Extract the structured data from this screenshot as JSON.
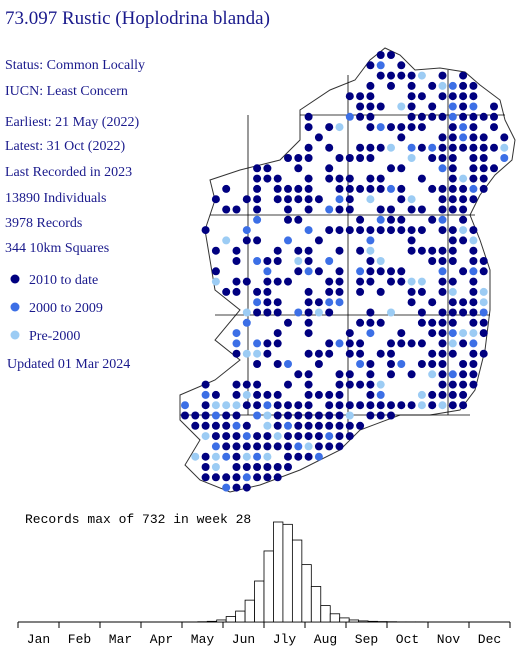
{
  "title": "73.097 Rustic (Hoplodrina blanda)",
  "info": [
    "Status: Common Locally",
    "IUCN: Least Concern",
    "Earliest: 21 May (2022)",
    "Latest: 31 Oct (2022)",
    "Last Recorded in 2023",
    "13890 Individuals",
    "3978 Records",
    "344 10km Squares"
  ],
  "legend": [
    {
      "label": "2010 to date",
      "color": "#000080"
    },
    {
      "label": "2000 to 2009",
      "color": "#3c6fe6"
    },
    {
      "label": "Pre-2000",
      "color": "#9cccf4"
    }
  ],
  "updated": "Updated 01 Mar 2024",
  "chart_data": {
    "type": "bar",
    "title": "Records max of 732 in week 28",
    "month_labels": [
      "Jan",
      "Feb",
      "Mar",
      "Apr",
      "May",
      "Jun",
      "Jly",
      "Aug",
      "Sep",
      "Oct",
      "Nov",
      "Dec"
    ],
    "categories": [
      null,
      null,
      null,
      null,
      null,
      null,
      null,
      null,
      null,
      null,
      null,
      null,
      null,
      null,
      null,
      null,
      null,
      null,
      null,
      null,
      null,
      null,
      null,
      null,
      null,
      null,
      null,
      null,
      null,
      null,
      null,
      null,
      null,
      null,
      null,
      null,
      null,
      null,
      null,
      null,
      null,
      null,
      null,
      null,
      null,
      null,
      null,
      null,
      null,
      null,
      null,
      null
    ],
    "values": [
      0,
      0,
      0,
      0,
      0,
      0,
      0,
      0,
      0,
      0,
      0,
      0,
      0,
      0,
      0,
      0,
      0,
      0,
      0,
      2,
      5,
      15,
      40,
      80,
      160,
      300,
      520,
      732,
      715,
      600,
      420,
      260,
      120,
      60,
      30,
      15,
      8,
      5,
      3,
      2,
      1,
      1,
      1,
      0,
      0,
      0,
      0,
      0,
      0,
      0,
      0,
      0
    ],
    "ylim": [
      0,
      732
    ],
    "color": "#ffffff"
  }
}
